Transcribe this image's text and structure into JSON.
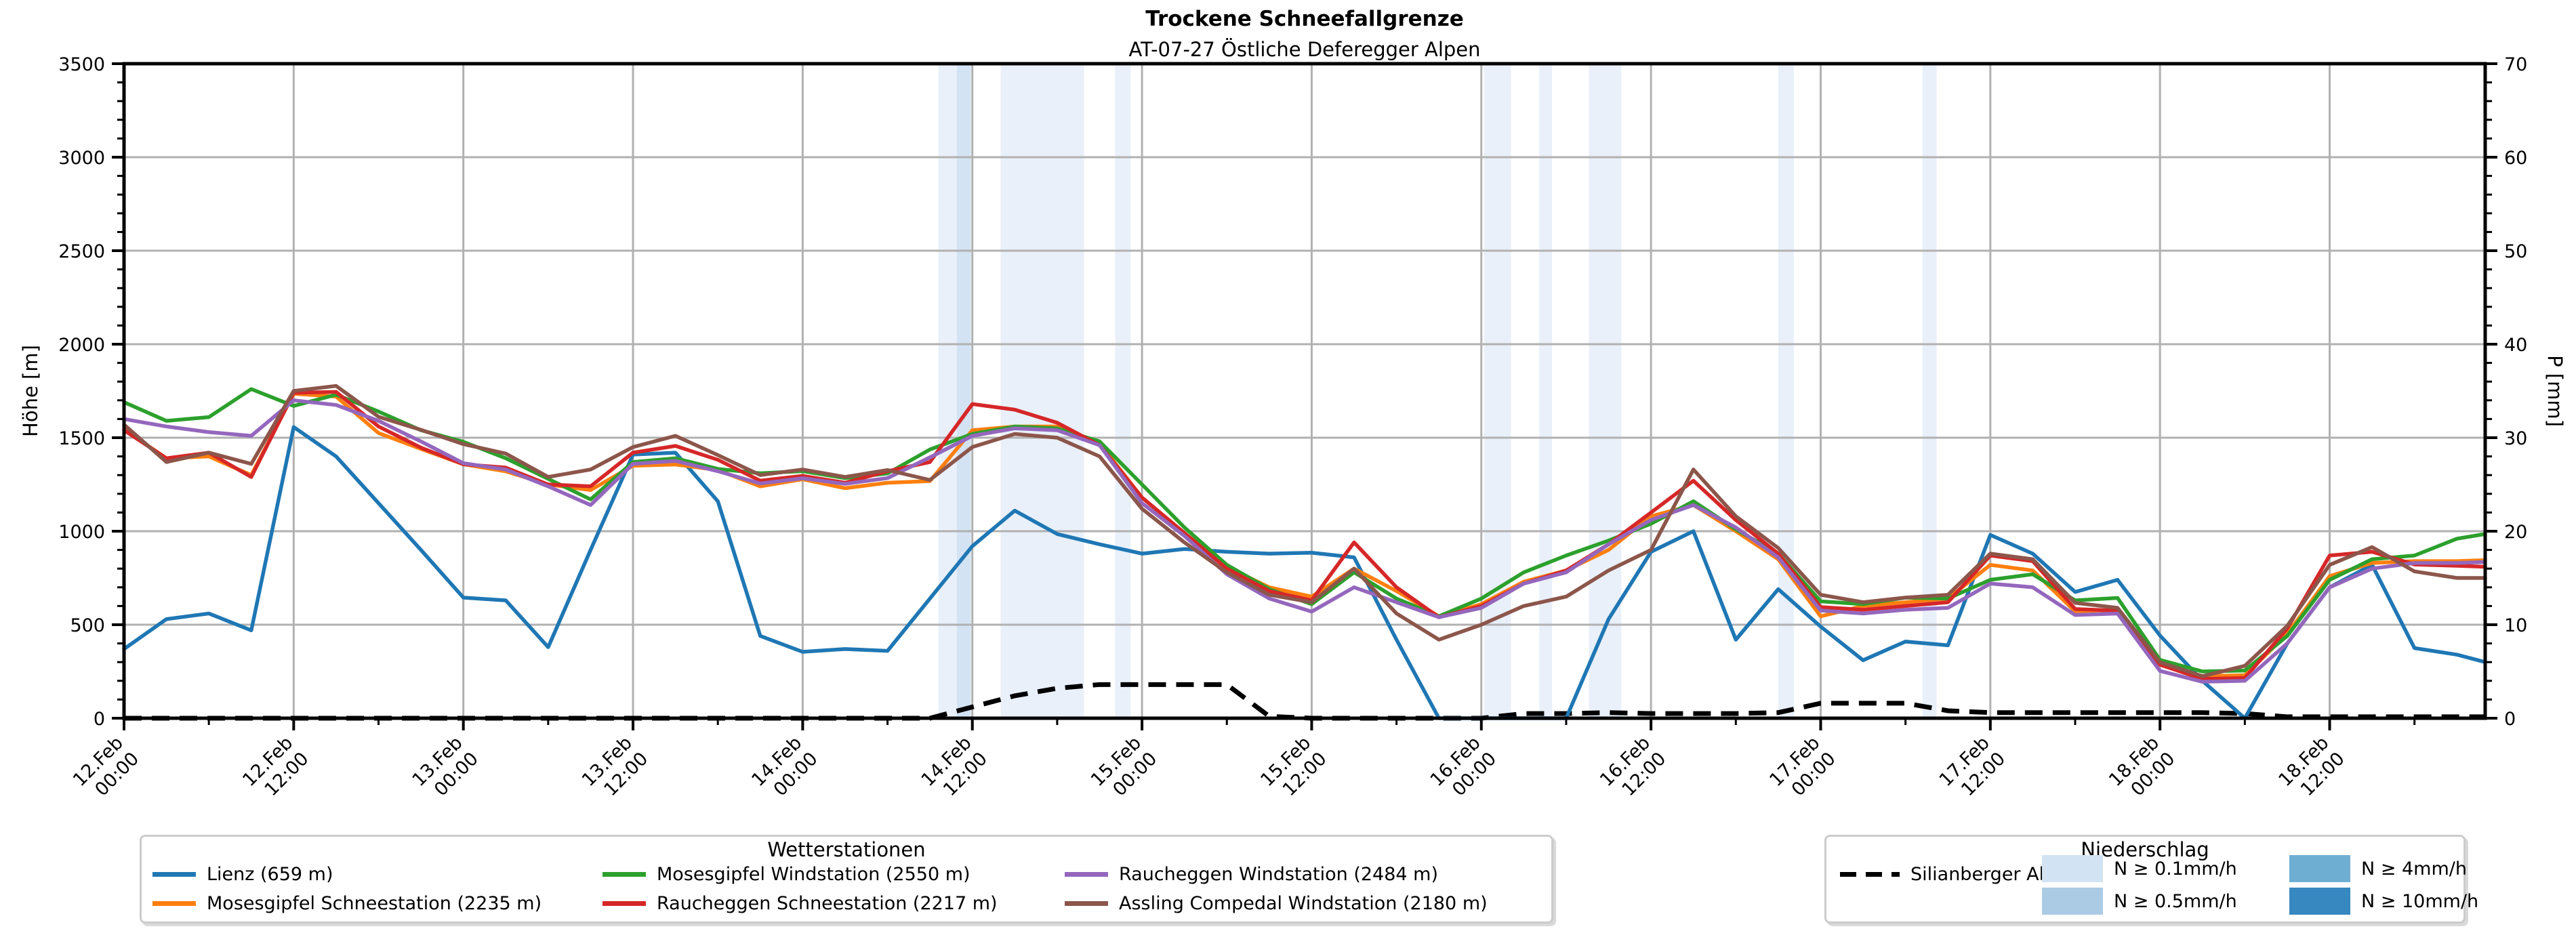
{
  "title": "Trockene Schneefallgrenze",
  "subtitle": "AT-07-27 Östliche Deferegger Alpen",
  "axes": {
    "ylabel_left": "Höhe [m]",
    "ylabel_right": "P [mm]",
    "ylim_left": [
      0,
      3500
    ],
    "ylim_right": [
      0,
      70
    ],
    "ytick_step_left": 500,
    "ytick_minor_left": 100,
    "ytick_step_right": 10,
    "ytick_minor_right": 2,
    "xtick_major_hours": 12,
    "xtick_minor_hours": 6,
    "grid": "on",
    "grid_color": "#b1b1b1"
  },
  "legend_stations": {
    "title": "Wetterstationen",
    "items": [
      {
        "label": "Lienz (659 m)",
        "color": "#1f77b4",
        "col": 0,
        "row": 0
      },
      {
        "label": "Mosesgipfel Schneestation (2235 m)",
        "color": "#ff7f0e",
        "col": 0,
        "row": 1
      },
      {
        "label": "Mosesgipfel Windstation (2550 m)",
        "color": "#2ca02c",
        "col": 1,
        "row": 0
      },
      {
        "label": "Raucheggen Schneestation (2217 m)",
        "color": "#d62728",
        "col": 1,
        "row": 1
      },
      {
        "label": "Raucheggen Windstation (2484 m)",
        "color": "#9467bd",
        "col": 2,
        "row": 0
      },
      {
        "label": "Assling Compedal Windstation (2180 m)",
        "color": "#8c564b",
        "col": 2,
        "row": 1
      }
    ]
  },
  "legend_precip": {
    "title": "Niederschlag",
    "dashed_label": "Silianberger Alm",
    "classes": [
      {
        "label": "N ≥ 0.1mm/h",
        "color": "#d2e3f3",
        "col": 0,
        "row": 0
      },
      {
        "label": "N ≥ 0.5mm/h",
        "color": "#abcbe5",
        "col": 0,
        "row": 1
      },
      {
        "label": "N ≥ 4mm/h",
        "color": "#6faed3",
        "col": 1,
        "row": 0
      },
      {
        "label": "N ≥ 10mm/h",
        "color": "#3787c0",
        "col": 1,
        "row": 1
      }
    ]
  },
  "chart_data": {
    "type": "line",
    "title": "Trockene Schneefallgrenze",
    "subtitle": "AT-07-27 Östliche Deferegger Alpen",
    "xlabel": "",
    "ylabel": "Höhe [m]",
    "ylabel2": "P [mm]",
    "x_unit": "hours since 12.Feb 00:00",
    "x_total_hours": 167,
    "x": [
      0,
      3,
      6,
      9,
      12,
      15,
      18,
      21,
      24,
      27,
      30,
      33,
      36,
      39,
      42,
      45,
      48,
      51,
      54,
      57,
      60,
      63,
      66,
      69,
      72,
      75,
      78,
      81,
      84,
      87,
      90,
      93,
      96,
      99,
      102,
      105,
      108,
      111,
      114,
      117,
      120,
      123,
      126,
      129,
      132,
      135,
      138,
      141,
      144,
      147,
      150,
      153,
      156,
      159,
      162,
      165,
      167
    ],
    "x_tick_labels": [
      {
        "h": 0,
        "date": "12.Feb",
        "time": "00:00"
      },
      {
        "h": 12,
        "date": "12.Feb",
        "time": "12:00"
      },
      {
        "h": 24,
        "date": "13.Feb",
        "time": "00:00"
      },
      {
        "h": 36,
        "date": "13.Feb",
        "time": "12:00"
      },
      {
        "h": 48,
        "date": "14.Feb",
        "time": "00:00"
      },
      {
        "h": 60,
        "date": "14.Feb",
        "time": "12:00"
      },
      {
        "h": 72,
        "date": "15.Feb",
        "time": "00:00"
      },
      {
        "h": 84,
        "date": "15.Feb",
        "time": "12:00"
      },
      {
        "h": 96,
        "date": "16.Feb",
        "time": "00:00"
      },
      {
        "h": 108,
        "date": "16.Feb",
        "time": "12:00"
      },
      {
        "h": 120,
        "date": "17.Feb",
        "time": "00:00"
      },
      {
        "h": 132,
        "date": "17.Feb",
        "time": "12:00"
      },
      {
        "h": 144,
        "date": "18.Feb",
        "time": "00:00"
      },
      {
        "h": 156,
        "date": "18.Feb",
        "time": "12:00"
      }
    ],
    "series": [
      {
        "name": "Lienz (659 m)",
        "color": "#1f77b4",
        "axis": "left",
        "values": [
          370,
          530,
          560,
          470,
          1557,
          1400,
          1150,
          900,
          645,
          630,
          380,
          900,
          1410,
          1420,
          1160,
          440,
          355,
          370,
          360,
          640,
          920,
          1110,
          985,
          930,
          880,
          905,
          890,
          880,
          885,
          860,
          420,
          0,
          0,
          0,
          0,
          530,
          890,
          1000,
          420,
          690,
          490,
          310,
          410,
          390,
          980,
          880,
          675,
          740,
          442,
          200,
          0,
          400,
          700,
          820,
          375,
          340,
          300
        ]
      },
      {
        "name": "Mosesgipfel Schneestation (2235 m)",
        "color": "#ff7f0e",
        "axis": "left",
        "values": [
          1545,
          1390,
          1400,
          1300,
          1735,
          1720,
          1525,
          1440,
          1358,
          1320,
          1250,
          1220,
          1350,
          1357,
          1327,
          1240,
          1278,
          1230,
          1259,
          1268,
          1540,
          1560,
          1560,
          1470,
          1180,
          990,
          810,
          700,
          650,
          800,
          680,
          545,
          610,
          730,
          790,
          900,
          1080,
          1140,
          1000,
          850,
          545,
          600,
          620,
          640,
          820,
          790,
          571,
          580,
          286,
          225,
          230,
          450,
          760,
          830,
          840,
          840,
          845
        ]
      },
      {
        "name": "Mosesgipfel Windstation (2550 m)",
        "color": "#2ca02c",
        "axis": "left",
        "values": [
          1690,
          1590,
          1610,
          1760,
          1670,
          1730,
          1640,
          1540,
          1478,
          1390,
          1280,
          1170,
          1370,
          1390,
          1333,
          1310,
          1321,
          1284,
          1309,
          1437,
          1520,
          1560,
          1550,
          1480,
          1250,
          1020,
          820,
          690,
          610,
          780,
          640,
          545,
          640,
          780,
          870,
          950,
          1040,
          1160,
          1010,
          880,
          625,
          610,
          645,
          640,
          740,
          770,
          630,
          643,
          312,
          250,
          255,
          440,
          740,
          850,
          870,
          960,
          985
        ]
      },
      {
        "name": "Raucheggen Schneestation (2217 m)",
        "color": "#d62728",
        "axis": "left",
        "values": [
          1540,
          1390,
          1420,
          1290,
          1740,
          1745,
          1560,
          1447,
          1358,
          1340,
          1250,
          1240,
          1420,
          1456,
          1382,
          1270,
          1296,
          1259,
          1321,
          1370,
          1680,
          1650,
          1580,
          1460,
          1180,
          990,
          800,
          680,
          630,
          940,
          700,
          540,
          600,
          720,
          790,
          930,
          1100,
          1270,
          1060,
          880,
          594,
          580,
          600,
          620,
          870,
          840,
          584,
          575,
          286,
          210,
          215,
          480,
          870,
          890,
          822,
          815,
          810
        ]
      },
      {
        "name": "Raucheggen Windstation (2484 m)",
        "color": "#9467bd",
        "axis": "left",
        "values": [
          1600,
          1560,
          1530,
          1510,
          1700,
          1675,
          1590,
          1480,
          1364,
          1330,
          1240,
          1140,
          1360,
          1376,
          1321,
          1255,
          1283,
          1253,
          1284,
          1395,
          1510,
          1550,
          1540,
          1460,
          1150,
          975,
          770,
          640,
          570,
          700,
          620,
          540,
          590,
          720,
          780,
          930,
          1060,
          1140,
          1020,
          860,
          576,
          560,
          580,
          590,
          720,
          700,
          552,
          560,
          253,
          195,
          200,
          400,
          700,
          800,
          830,
          830,
          835
        ]
      },
      {
        "name": "Assling Compedal Windstation (2180 m)",
        "color": "#8c564b",
        "axis": "left",
        "values": [
          1570,
          1370,
          1420,
          1360,
          1750,
          1777,
          1612,
          1542,
          1466,
          1415,
          1290,
          1330,
          1450,
          1510,
          1407,
          1300,
          1330,
          1290,
          1327,
          1274,
          1450,
          1520,
          1500,
          1400,
          1120,
          940,
          780,
          660,
          620,
          800,
          560,
          420,
          500,
          600,
          650,
          790,
          900,
          1330,
          1080,
          910,
          660,
          620,
          645,
          660,
          880,
          850,
          617,
          590,
          299,
          225,
          280,
          494,
          820,
          915,
          785,
          750,
          750
        ]
      }
    ],
    "dashed_series": {
      "name": "Silianberger Alm",
      "color": "#000000",
      "axis": "right",
      "values_mm": [
        0,
        0,
        0,
        0,
        0,
        0,
        0,
        0,
        0,
        0,
        0,
        0,
        0,
        0,
        0,
        0,
        0,
        0,
        0,
        0,
        1.2,
        2.4,
        3.2,
        3.6,
        3.6,
        3.6,
        3.6,
        0.2,
        0,
        0,
        0,
        0,
        0,
        0.5,
        0.5,
        0.6,
        0.5,
        0.5,
        0.5,
        0.6,
        1.6,
        1.6,
        1.6,
        0.8,
        0.6,
        0.6,
        0.6,
        0.6,
        0.6,
        0.6,
        0.5,
        0.15,
        0.15,
        0.15,
        0.15,
        0.15,
        0.15
      ]
    },
    "precip_bands": [
      {
        "start_h": 57.6,
        "end_h": 58.9,
        "level": "0.1"
      },
      {
        "start_h": 58.9,
        "end_h": 59.9,
        "level": "0.5"
      },
      {
        "start_h": 62.0,
        "end_h": 67.9,
        "level": "0.1"
      },
      {
        "start_h": 70.1,
        "end_h": 71.2,
        "level": "0.1"
      },
      {
        "start_h": 96.2,
        "end_h": 98.1,
        "level": "0.1"
      },
      {
        "start_h": 100.1,
        "end_h": 101.0,
        "level": "0.1"
      },
      {
        "start_h": 103.6,
        "end_h": 105.9,
        "level": "0.1"
      },
      {
        "start_h": 117.0,
        "end_h": 118.1,
        "level": "0.1"
      },
      {
        "start_h": 127.2,
        "end_h": 128.2,
        "level": "0.1"
      }
    ],
    "band_fill_colors": {
      "0.1": "#e9f0fa",
      "0.5": "#d4e3f4"
    },
    "legend_position": "below"
  }
}
